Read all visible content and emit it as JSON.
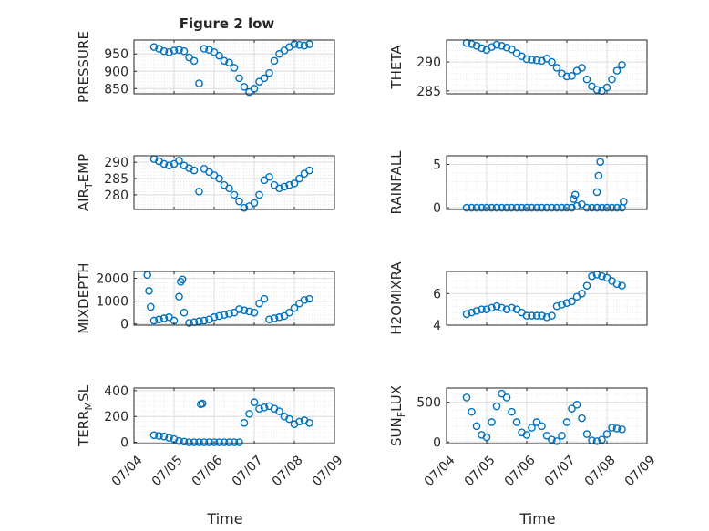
{
  "figure": {
    "title": "Figure 2 low",
    "xlabel": "Time",
    "x_ticks": [
      "07/04",
      "07/05",
      "07/06",
      "07/07",
      "07/08",
      "07/09"
    ],
    "marker_color": "#0072BD",
    "axes_color": "#262626",
    "grid_color": "#dcdcdc"
  },
  "chart_data": [
    {
      "type": "scatter",
      "name": "PRESSURE",
      "ylabel": "PRESSURE",
      "yticks": [
        "850",
        "900",
        "950"
      ],
      "ylim": [
        835,
        990
      ],
      "x": [
        "07/04 12:00",
        "07/04 15:00",
        "07/04 18:00",
        "07/04 21:00",
        "07/05 00:00",
        "07/05 03:00",
        "07/05 06:00",
        "07/05 09:00",
        "07/05 12:00",
        "07/05 15:00",
        "07/05 18:00",
        "07/05 21:00",
        "07/06 00:00",
        "07/06 03:00",
        "07/06 06:00",
        "07/06 09:00",
        "07/06 12:00",
        "07/06 15:00",
        "07/06 18:00",
        "07/06 21:00",
        "07/07 00:00",
        "07/07 03:00",
        "07/07 06:00",
        "07/07 09:00",
        "07/07 12:00",
        "07/07 15:00",
        "07/07 18:00",
        "07/07 21:00",
        "07/08 00:00",
        "07/08 03:00",
        "07/08 06:00",
        "07/08 09:00"
      ],
      "y": [
        970,
        965,
        958,
        955,
        960,
        962,
        958,
        940,
        930,
        865,
        965,
        962,
        955,
        945,
        930,
        925,
        910,
        880,
        855,
        840,
        850,
        870,
        880,
        895,
        930,
        950,
        960,
        970,
        978,
        976,
        974,
        978
      ]
    },
    {
      "type": "scatter",
      "name": "THETA",
      "ylabel": "THETA",
      "yticks": [
        "285",
        "290"
      ],
      "ylim": [
        284.5,
        293.8
      ],
      "x": [
        "07/04 12:00",
        "07/04 15:00",
        "07/04 18:00",
        "07/04 21:00",
        "07/05 00:00",
        "07/05 03:00",
        "07/05 06:00",
        "07/05 09:00",
        "07/05 12:00",
        "07/05 15:00",
        "07/05 18:00",
        "07/05 21:00",
        "07/06 00:00",
        "07/06 03:00",
        "07/06 06:00",
        "07/06 09:00",
        "07/06 12:00",
        "07/06 15:00",
        "07/06 18:00",
        "07/06 21:00",
        "07/07 00:00",
        "07/07 03:00",
        "07/07 06:00",
        "07/07 09:00",
        "07/07 12:00",
        "07/07 15:00",
        "07/07 18:00",
        "07/07 21:00",
        "07/08 00:00",
        "07/08 03:00",
        "07/08 06:00",
        "07/08 09:00"
      ],
      "y": [
        293.3,
        293.1,
        292.8,
        292.4,
        292.1,
        292.6,
        293.0,
        292.8,
        292.5,
        292.2,
        291.5,
        291.0,
        290.5,
        290.4,
        290.3,
        290.2,
        290.6,
        290.0,
        289.0,
        288.0,
        287.5,
        287.6,
        288.5,
        289.0,
        287.0,
        285.8,
        285.2,
        285.0,
        285.6,
        287.0,
        288.5,
        289.5
      ]
    },
    {
      "type": "scatter",
      "name": "AIR_TEMP",
      "ylabel": "AIR_TEMP",
      "yticks": [
        "280",
        "285",
        "290"
      ],
      "ylim": [
        275.5,
        292.0
      ],
      "x": [
        "07/04 12:00",
        "07/04 15:00",
        "07/04 18:00",
        "07/04 21:00",
        "07/05 00:00",
        "07/05 03:00",
        "07/05 06:00",
        "07/05 09:00",
        "07/05 12:00",
        "07/05 15:00",
        "07/05 18:00",
        "07/05 21:00",
        "07/06 00:00",
        "07/06 03:00",
        "07/06 06:00",
        "07/06 09:00",
        "07/06 12:00",
        "07/06 15:00",
        "07/06 18:00",
        "07/06 21:00",
        "07/07 00:00",
        "07/07 03:00",
        "07/07 06:00",
        "07/07 09:00",
        "07/07 12:00",
        "07/07 15:00",
        "07/07 18:00",
        "07/07 21:00",
        "07/08 00:00",
        "07/08 03:00",
        "07/08 06:00",
        "07/08 09:00"
      ],
      "y": [
        291.0,
        290.3,
        289.5,
        289.0,
        289.5,
        290.5,
        289.0,
        288.2,
        287.5,
        281.0,
        288.0,
        287.0,
        286.0,
        285.0,
        283.0,
        282.0,
        280.0,
        278.0,
        276.0,
        276.5,
        277.5,
        280.0,
        284.5,
        285.5,
        283.0,
        282.0,
        282.5,
        283.0,
        283.5,
        285.0,
        286.5,
        287.5
      ]
    },
    {
      "type": "scatter",
      "name": "RAINFALL",
      "ylabel": "RAINFALL",
      "yticks": [
        "0",
        "5"
      ],
      "ylim": [
        -0.2,
        6.0
      ],
      "x": [
        "07/04 12:00",
        "07/04 15:00",
        "07/04 18:00",
        "07/04 21:00",
        "07/05 00:00",
        "07/05 03:00",
        "07/05 06:00",
        "07/05 09:00",
        "07/05 12:00",
        "07/05 15:00",
        "07/05 18:00",
        "07/05 21:00",
        "07/06 00:00",
        "07/06 03:00",
        "07/06 06:00",
        "07/06 09:00",
        "07/06 12:00",
        "07/06 15:00",
        "07/06 18:00",
        "07/06 21:00",
        "07/07 00:00",
        "07/07 03:00",
        "07/07 06:00",
        "07/07 09:00",
        "07/07 12:00",
        "07/07 15:00",
        "07/07 18:00",
        "07/07 21:00",
        "07/08 00:00",
        "07/08 03:00",
        "07/08 06:00",
        "07/08 09:00",
        "07/07 04:00",
        "07/07 05:00",
        "07/07 18:00",
        "07/07 19:00",
        "07/07 20:00",
        "07/08 10:00"
      ],
      "y": [
        0,
        0,
        0,
        0,
        0,
        0,
        0,
        0,
        0,
        0,
        0,
        0,
        0,
        0,
        0,
        0,
        0,
        0,
        0,
        0,
        0,
        0,
        0.2,
        0.4,
        0,
        0,
        0,
        0,
        0,
        0,
        0,
        0,
        1.0,
        1.5,
        1.8,
        3.7,
        5.3,
        0.7
      ]
    },
    {
      "type": "scatter",
      "name": "MIXDEPTH",
      "ylabel": "MIXDEPTH",
      "yticks": [
        "0",
        "1000",
        "2000"
      ],
      "ylim": [
        -50,
        2300
      ],
      "x": [
        "07/04 08:00",
        "07/04 09:00",
        "07/04 10:00",
        "07/04 12:00",
        "07/04 15:00",
        "07/04 18:00",
        "07/04 21:00",
        "07/05 00:00",
        "07/05 03:00",
        "07/05 04:00",
        "07/05 05:00",
        "07/05 06:00",
        "07/05 09:00",
        "07/05 12:00",
        "07/05 15:00",
        "07/05 18:00",
        "07/05 21:00",
        "07/06 00:00",
        "07/06 03:00",
        "07/06 06:00",
        "07/06 09:00",
        "07/06 12:00",
        "07/06 15:00",
        "07/06 18:00",
        "07/06 21:00",
        "07/07 00:00",
        "07/07 03:00",
        "07/07 06:00",
        "07/07 09:00",
        "07/07 12:00",
        "07/07 15:00",
        "07/07 18:00",
        "07/07 21:00",
        "07/08 00:00",
        "07/08 03:00",
        "07/08 06:00",
        "07/08 09:00"
      ],
      "y": [
        2150,
        1450,
        750,
        150,
        200,
        250,
        300,
        150,
        1200,
        1850,
        1950,
        500,
        50,
        80,
        120,
        150,
        200,
        300,
        350,
        400,
        450,
        500,
        650,
        600,
        550,
        500,
        900,
        1100,
        200,
        250,
        300,
        350,
        500,
        700,
        900,
        1050,
        1100
      ]
    },
    {
      "type": "scatter",
      "name": "H2OMIXRA",
      "ylabel": "H2OMIXRA",
      "yticks": [
        "4",
        "6"
      ],
      "ylim": [
        4.0,
        7.4
      ],
      "x": [
        "07/04 12:00",
        "07/04 15:00",
        "07/04 18:00",
        "07/04 21:00",
        "07/05 00:00",
        "07/05 03:00",
        "07/05 06:00",
        "07/05 09:00",
        "07/05 12:00",
        "07/05 15:00",
        "07/05 18:00",
        "07/05 21:00",
        "07/06 00:00",
        "07/06 03:00",
        "07/06 06:00",
        "07/06 09:00",
        "07/06 12:00",
        "07/06 15:00",
        "07/06 18:00",
        "07/06 21:00",
        "07/07 00:00",
        "07/07 03:00",
        "07/07 06:00",
        "07/07 09:00",
        "07/07 12:00",
        "07/07 15:00",
        "07/07 18:00",
        "07/07 21:00",
        "07/08 00:00",
        "07/08 03:00",
        "07/08 06:00",
        "07/08 09:00"
      ],
      "y": [
        4.7,
        4.8,
        4.9,
        5.0,
        5.0,
        5.1,
        5.2,
        5.1,
        5.0,
        5.1,
        5.0,
        4.8,
        4.6,
        4.6,
        4.6,
        4.6,
        4.5,
        4.6,
        5.2,
        5.3,
        5.4,
        5.5,
        5.8,
        6.0,
        6.5,
        7.1,
        7.2,
        7.1,
        7.0,
        6.8,
        6.6,
        6.5
      ]
    },
    {
      "type": "scatter",
      "name": "TERR_MSL",
      "ylabel": "TERR_MSL",
      "yticks": [
        "0",
        "200",
        "400"
      ],
      "ylim": [
        -10,
        420
      ],
      "x": [
        "07/04 12:00",
        "07/04 15:00",
        "07/04 18:00",
        "07/04 21:00",
        "07/05 00:00",
        "07/05 03:00",
        "07/05 06:00",
        "07/05 09:00",
        "07/05 12:00",
        "07/05 15:00",
        "07/05 18:00",
        "07/05 21:00",
        "07/06 00:00",
        "07/06 03:00",
        "07/06 06:00",
        "07/06 09:00",
        "07/06 12:00",
        "07/06 15:00",
        "07/06 18:00",
        "07/06 21:00",
        "07/07 00:00",
        "07/07 03:00",
        "07/07 06:00",
        "07/07 09:00",
        "07/07 12:00",
        "07/07 15:00",
        "07/07 18:00",
        "07/07 21:00",
        "07/08 00:00",
        "07/08 03:00",
        "07/08 06:00",
        "07/08 09:00",
        "07/05 16:00",
        "07/05 17:00"
      ],
      "y": [
        55,
        50,
        45,
        35,
        25,
        10,
        5,
        0,
        0,
        0,
        0,
        0,
        0,
        0,
        0,
        0,
        0,
        0,
        150,
        220,
        310,
        260,
        270,
        280,
        260,
        240,
        200,
        180,
        140,
        160,
        170,
        150,
        295,
        300
      ]
    },
    {
      "type": "scatter",
      "name": "SUN_FLUX",
      "ylabel": "SUN_FLUX",
      "yticks": [
        "0",
        "500"
      ],
      "ylim": [
        -20,
        680
      ],
      "x": [
        "07/04 12:00",
        "07/04 15:00",
        "07/04 18:00",
        "07/04 21:00",
        "07/05 00:00",
        "07/05 03:00",
        "07/05 06:00",
        "07/05 09:00",
        "07/05 12:00",
        "07/05 15:00",
        "07/05 18:00",
        "07/05 21:00",
        "07/06 00:00",
        "07/06 03:00",
        "07/06 06:00",
        "07/06 09:00",
        "07/06 12:00",
        "07/06 15:00",
        "07/06 18:00",
        "07/06 21:00",
        "07/07 00:00",
        "07/07 03:00",
        "07/07 06:00",
        "07/07 09:00",
        "07/07 12:00",
        "07/07 15:00",
        "07/07 18:00",
        "07/07 21:00",
        "07/08 00:00",
        "07/08 03:00",
        "07/08 06:00",
        "07/08 09:00"
      ],
      "y": [
        560,
        380,
        200,
        90,
        60,
        250,
        450,
        610,
        560,
        380,
        250,
        120,
        90,
        180,
        250,
        200,
        80,
        30,
        10,
        80,
        250,
        420,
        470,
        300,
        100,
        20,
        10,
        30,
        100,
        180,
        170,
        160
      ]
    }
  ]
}
